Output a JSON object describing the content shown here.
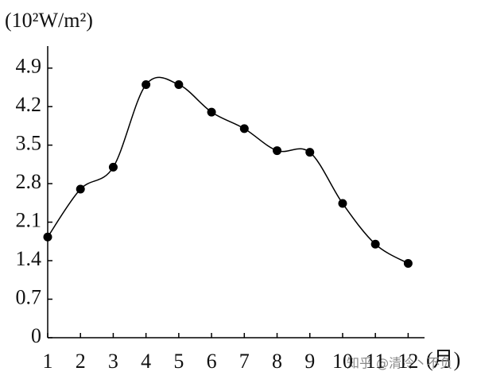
{
  "chart_data": {
    "type": "line",
    "y_label": "(10²W/m²)",
    "x_label": "(月)",
    "x": [
      1,
      2,
      3,
      4,
      5,
      6,
      7,
      8,
      9,
      10,
      11,
      12
    ],
    "series": [
      {
        "color": "#000000",
        "values": [
          1.83,
          2.7,
          3.1,
          4.6,
          4.6,
          4.1,
          3.8,
          3.4,
          3.37,
          2.44,
          1.7,
          1.35
        ]
      }
    ],
    "xlim": [
      1,
      12.5
    ],
    "xticks": [
      1,
      2,
      3,
      4,
      5,
      6,
      7,
      8,
      9,
      10,
      11,
      12
    ],
    "ylim": [
      0,
      5.3
    ],
    "yticks": [
      0,
      0.7,
      1.4,
      2.1,
      2.8,
      3.5,
      4.2,
      4.9
    ],
    "smooth": true
  },
  "watermark": "知乎 @清冷丶不负"
}
